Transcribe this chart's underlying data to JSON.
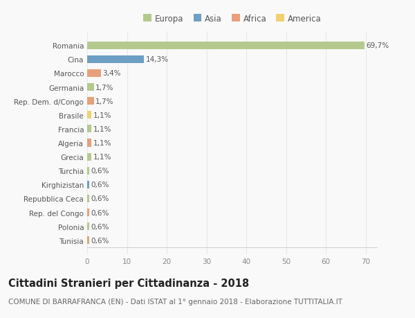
{
  "categories": [
    "Romania",
    "Cina",
    "Marocco",
    "Germania",
    "Rep. Dem. d/Congo",
    "Brasile",
    "Francia",
    "Algeria",
    "Grecia",
    "Turchia",
    "Kirghizistan",
    "Repubblica Ceca",
    "Rep. del Congo",
    "Polonia",
    "Tunisia"
  ],
  "values": [
    69.7,
    14.3,
    3.4,
    1.7,
    1.7,
    1.1,
    1.1,
    1.1,
    1.1,
    0.6,
    0.6,
    0.6,
    0.6,
    0.6,
    0.6
  ],
  "labels": [
    "69,7%",
    "14,3%",
    "3,4%",
    "1,7%",
    "1,7%",
    "1,1%",
    "1,1%",
    "1,1%",
    "1,1%",
    "0,6%",
    "0,6%",
    "0,6%",
    "0,6%",
    "0,6%",
    "0,6%"
  ],
  "colors": [
    "#b5c98e",
    "#6e9ec4",
    "#e8a07a",
    "#b5c98e",
    "#e8a07a",
    "#f0d070",
    "#b5c98e",
    "#e8a07a",
    "#b5c98e",
    "#b5c98e",
    "#6e9ec4",
    "#b5c98e",
    "#e8a07a",
    "#b5c98e",
    "#e8a07a"
  ],
  "legend_labels": [
    "Europa",
    "Asia",
    "Africa",
    "America"
  ],
  "legend_colors": [
    "#b5c98e",
    "#6e9ec4",
    "#e8a07a",
    "#f0d070"
  ],
  "title": "Cittadini Stranieri per Cittadinanza - 2018",
  "subtitle": "COMUNE DI BARRAFRANCA (EN) - Dati ISTAT al 1° gennaio 2018 - Elaborazione TUTTITALIA.IT",
  "xlim": [
    0,
    73
  ],
  "xticks": [
    0,
    10,
    20,
    30,
    40,
    50,
    60,
    70
  ],
  "background_color": "#f9f9f9",
  "grid_color": "#e8e8e8",
  "bar_height": 0.55,
  "title_fontsize": 10.5,
  "subtitle_fontsize": 7.5,
  "tick_fontsize": 7.5,
  "label_fontsize": 7.5,
  "legend_fontsize": 8.5
}
